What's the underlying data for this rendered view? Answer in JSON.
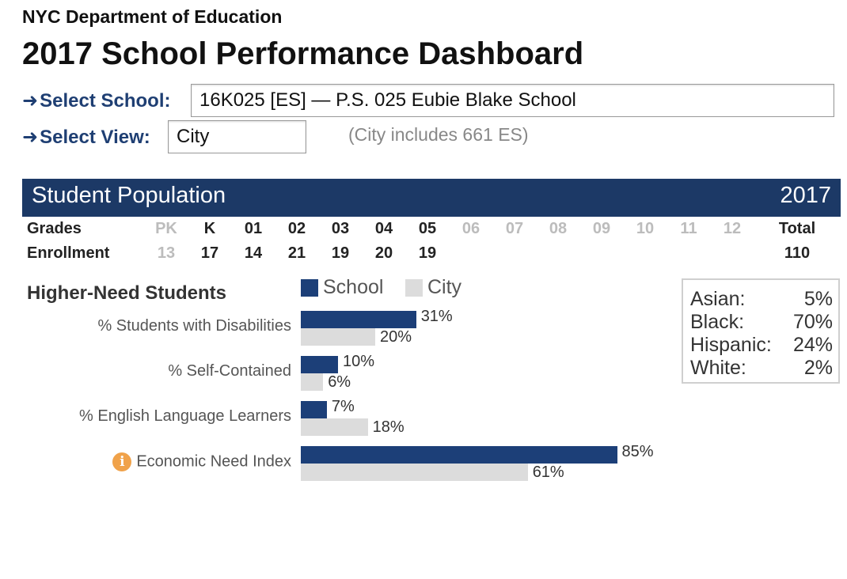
{
  "header": {
    "department": "NYC Department of Education",
    "title": "2017 School Performance Dashboard"
  },
  "selectors": {
    "arrow": "➜",
    "school_label": "Select School:",
    "school_value": "16K025 [ES] — P.S. 025 Eubie Blake School",
    "view_label": "Select View:",
    "view_value": "City",
    "city_note": "(City includes 661 ES)"
  },
  "population": {
    "title": "Student Population",
    "year": "2017",
    "grades_label": "Grades",
    "enrollment_label": "Enrollment",
    "grades": [
      "PK",
      "K",
      "01",
      "02",
      "03",
      "04",
      "05",
      "06",
      "07",
      "08",
      "09",
      "10",
      "11",
      "12"
    ],
    "enrollment": [
      "13",
      "17",
      "14",
      "21",
      "19",
      "20",
      "19",
      "",
      "",
      "",
      "",
      "",
      "",
      ""
    ],
    "grade_active": [
      false,
      true,
      true,
      true,
      true,
      true,
      true,
      false,
      false,
      false,
      false,
      false,
      false,
      false
    ],
    "total_label": "Total",
    "total_value": "110"
  },
  "higher_need": {
    "title": "Higher-Need Students",
    "legend_school": "School",
    "legend_city": "City",
    "colors": {
      "school": "#1c3f78",
      "city": "#dcdcdc",
      "info": "#f0a24a"
    },
    "info_icon": "i",
    "metrics": [
      {
        "label": "% Students with Disabilities",
        "school": 31,
        "city": 20,
        "school_label": "31%",
        "city_label": "20%"
      },
      {
        "label": "% Self-Contained",
        "school": 10,
        "city": 6,
        "school_label": "10%",
        "city_label": "6%"
      },
      {
        "label": "% English Language Learners",
        "school": 7,
        "city": 18,
        "school_label": "7%",
        "city_label": "18%"
      },
      {
        "label": "Economic Need Index",
        "school": 85,
        "city": 61,
        "school_label": "85%",
        "city_label": "61%"
      }
    ]
  },
  "ethnicity": [
    {
      "label": "Asian:",
      "value": "5%"
    },
    {
      "label": "Black:",
      "value": "70%"
    },
    {
      "label": "Hispanic:",
      "value": "24%"
    },
    {
      "label": "White:",
      "value": "2%"
    }
  ]
}
